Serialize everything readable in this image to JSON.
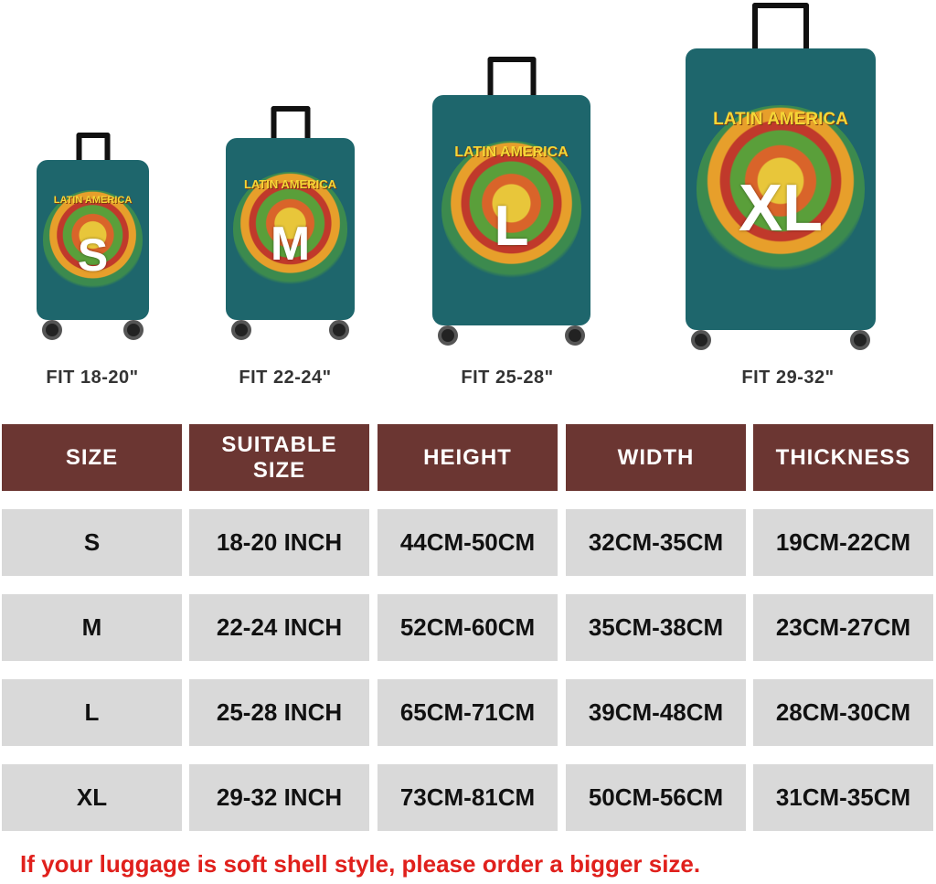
{
  "artwork_text": "LATIN AMERICA",
  "luggage": [
    {
      "size": "S",
      "fit": "FIT 18-20\""
    },
    {
      "size": "M",
      "fit": "FIT 22-24\""
    },
    {
      "size": "L",
      "fit": "FIT 25-28\""
    },
    {
      "size": "XL",
      "fit": "FIT 29-32\""
    }
  ],
  "table": {
    "headers": [
      "SIZE",
      "SUITABLE SIZE",
      "HEIGHT",
      "WIDTH",
      "THICKNESS"
    ],
    "rows": [
      [
        "S",
        "18-20 INCH",
        "44CM-50CM",
        "32CM-35CM",
        "19CM-22CM"
      ],
      [
        "M",
        "22-24 INCH",
        "52CM-60CM",
        "35CM-38CM",
        "23CM-27CM"
      ],
      [
        "L",
        "25-28 INCH",
        "65CM-71CM",
        "39CM-48CM",
        "28CM-30CM"
      ],
      [
        "XL",
        "29-32 INCH",
        "73CM-81CM",
        "50CM-56CM",
        "31CM-35CM"
      ]
    ]
  },
  "note": "If your luggage is soft shell style, please order a bigger size.",
  "colors": {
    "header": "#6b3632",
    "row": "#d9d9d9",
    "cover": "#1e666c",
    "note": "#e0201c"
  }
}
